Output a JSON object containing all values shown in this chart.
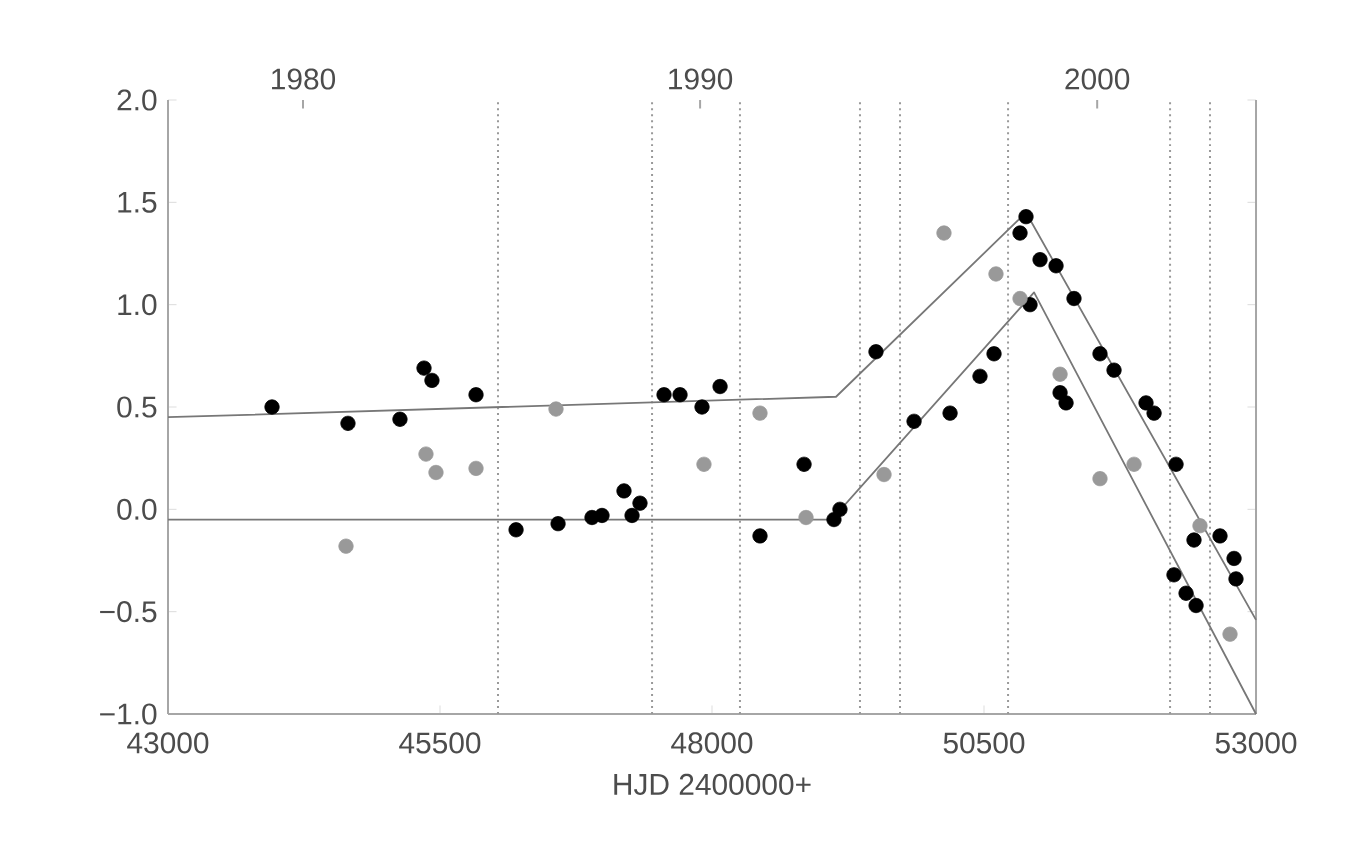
{
  "chart_data": {
    "type": "scatter",
    "xlabel": "HJD 2400000+",
    "xlim": [
      43000,
      53000
    ],
    "xticks": [
      43000,
      45500,
      48000,
      50500,
      53000
    ],
    "ylim": [
      -1.0,
      2.0
    ],
    "yticks": [
      {
        "value": -1.0,
        "label": "−1.0"
      },
      {
        "value": -0.5,
        "label": "−0.5"
      },
      {
        "value": 0.0,
        "label": "0.0"
      },
      {
        "value": 0.5,
        "label": "0.5"
      },
      {
        "value": 1.0,
        "label": "1.0"
      },
      {
        "value": 1.5,
        "label": "1.5"
      },
      {
        "value": 2.0,
        "label": "2.0"
      }
    ],
    "x2lim": [
      1976.6,
      2004.0
    ],
    "x2ticks": [
      1980,
      1990,
      2000
    ],
    "grid": false,
    "ref_lines": [
      {
        "axis": "x",
        "value": 46033,
        "color": "#999999",
        "line_style": "dotted"
      },
      {
        "axis": "x",
        "value": 47449,
        "color": "#999999",
        "line_style": "dotted"
      },
      {
        "axis": "x",
        "value": 48257,
        "color": "#999999",
        "line_style": "dotted"
      },
      {
        "axis": "x",
        "value": 49360,
        "color": "#999999",
        "line_style": "dotted"
      },
      {
        "axis": "x",
        "value": 49728,
        "color": "#999999",
        "line_style": "dotted"
      },
      {
        "axis": "x",
        "value": 50721,
        "color": "#999999",
        "line_style": "dotted"
      },
      {
        "axis": "x",
        "value": 52210,
        "color": "#999999",
        "line_style": "dotted"
      },
      {
        "axis": "x",
        "value": 52577,
        "color": "#999999",
        "line_style": "dotted"
      }
    ],
    "series": [
      {
        "type": "line",
        "line_style": "solid",
        "color": "#777777",
        "x": [
          43000,
          49140,
          50886,
          53000
        ],
        "values": [
          0.45,
          0.55,
          1.45,
          -0.54
        ]
      },
      {
        "type": "line",
        "line_style": "solid",
        "color": "#777777",
        "x": [
          43000,
          49100,
          50960,
          53000
        ],
        "values": [
          -0.05,
          -0.05,
          1.06,
          -1.0
        ]
      },
      {
        "color": "#000000",
        "x": [
          43956,
          44654,
          45132,
          45353,
          45426,
          45831,
          46199,
          46585,
          46897,
          46989,
          47191,
          47265,
          47338,
          47559,
          47706,
          47908,
          48074,
          48441,
          48846,
          49121,
          49176,
          49507,
          49857,
          50188,
          50463,
          50592,
          50831,
          50886,
          50923,
          51015,
          51162,
          51199,
          51254,
          51327,
          51566,
          51695,
          51989,
          52063,
          52265,
          52246,
          52357,
          52449,
          52430,
          52669,
          52798,
          52816
        ],
        "values": [
          0.5,
          0.42,
          0.44,
          0.69,
          0.63,
          0.56,
          -0.1,
          -0.07,
          -0.04,
          -0.03,
          0.09,
          -0.03,
          0.03,
          0.56,
          0.56,
          0.5,
          0.6,
          -0.13,
          0.22,
          -0.05,
          0.0,
          0.77,
          0.43,
          0.47,
          0.65,
          0.76,
          1.35,
          1.43,
          1.0,
          1.22,
          1.19,
          0.57,
          0.52,
          1.03,
          0.76,
          0.68,
          0.52,
          0.47,
          0.22,
          -0.32,
          -0.41,
          -0.47,
          -0.15,
          -0.13,
          -0.24,
          -0.34
        ]
      },
      {
        "color": "#999999",
        "x": [
          44636,
          45371,
          45463,
          45831,
          46566,
          47926,
          48441,
          48864,
          49581,
          50132,
          50610,
          50831,
          51199,
          51566,
          51879,
          52485,
          52761
        ],
        "values": [
          -0.18,
          0.27,
          0.18,
          0.2,
          0.49,
          0.22,
          0.47,
          -0.04,
          0.17,
          1.35,
          1.15,
          1.03,
          0.66,
          0.15,
          0.22,
          -0.08,
          -0.61
        ]
      }
    ]
  }
}
